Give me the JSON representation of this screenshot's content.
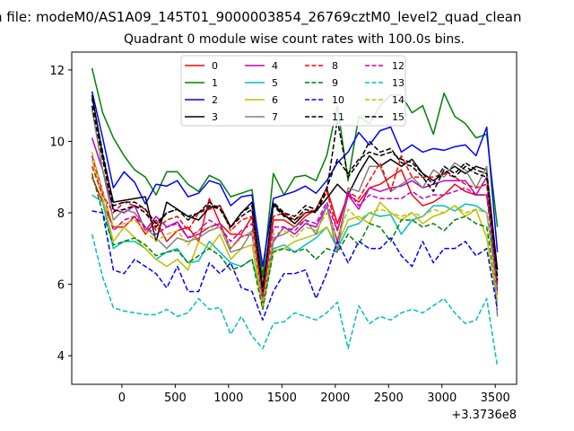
{
  "suptitle": "n file: modeM0/AS1A09_145T01_9000003854_26769cztM0_level2_quad_clean",
  "chart_data": {
    "type": "line",
    "title": "Quadrant 0 module wise count rates with 100.0s bins.",
    "xlabel": "",
    "ylabel": "",
    "x_offset_label": "+3.3736e8",
    "xlim": [
      -470,
      3700
    ],
    "ylim": [
      3.2,
      12.5
    ],
    "xticks": [
      0,
      500,
      1000,
      1500,
      2000,
      2500,
      3000,
      3500
    ],
    "yticks": [
      4,
      6,
      8,
      10,
      12
    ],
    "grid": false,
    "legend": {
      "placement": "top-center",
      "columns": 4
    },
    "x": [
      -280,
      -180,
      -80,
      20,
      120,
      220,
      320,
      420,
      520,
      620,
      720,
      820,
      920,
      1020,
      1120,
      1220,
      1320,
      1420,
      1520,
      1620,
      1720,
      1820,
      1920,
      2020,
      2120,
      2220,
      2320,
      2420,
      2520,
      2620,
      2720,
      2820,
      2920,
      3020,
      3120,
      3220,
      3320,
      3420,
      3520
    ],
    "series": [
      {
        "name": "0",
        "color": "#ff0000",
        "dash": false,
        "values": [
          9.0,
          8.3,
          7.6,
          7.6,
          7.9,
          7.4,
          7.8,
          7.2,
          7.5,
          7.6,
          7.2,
          8.4,
          7.7,
          7.4,
          7.4,
          7.9,
          5.6,
          7.8,
          7.8,
          7.6,
          7.9,
          8.1,
          8.7,
          7.7,
          8.5,
          8.3,
          8.7,
          8.8,
          9.0,
          9.2,
          8.5,
          8.2,
          8.3,
          8.5,
          8.8,
          8.6,
          8.5,
          8.5,
          6.4
        ]
      },
      {
        "name": "1",
        "color": "#008000",
        "dash": false,
        "values": [
          12.05,
          10.8,
          10.1,
          9.6,
          9.2,
          9.0,
          8.5,
          9.15,
          9.15,
          8.8,
          8.6,
          9.05,
          8.9,
          8.45,
          8.55,
          8.65,
          6.2,
          9.1,
          8.5,
          9.0,
          9.05,
          8.9,
          9.6,
          11.0,
          8.9,
          10.7,
          10.5,
          11.0,
          11.3,
          11.3,
          10.8,
          11.0,
          10.2,
          11.35,
          10.7,
          10.5,
          10.1,
          10.2,
          7.6
        ]
      },
      {
        "name": "2",
        "color": "#0000ff",
        "dash": false,
        "values": [
          11.4,
          10.1,
          8.7,
          9.15,
          8.85,
          8.25,
          8.8,
          8.75,
          8.9,
          8.45,
          8.55,
          8.9,
          8.8,
          8.2,
          8.45,
          8.5,
          6.5,
          8.4,
          8.5,
          8.6,
          8.75,
          8.55,
          8.9,
          9.4,
          9.7,
          10.25,
          9.9,
          10.3,
          10.4,
          9.7,
          9.9,
          9.7,
          9.8,
          9.75,
          9.85,
          9.9,
          9.6,
          10.4,
          6.9
        ]
      },
      {
        "name": "3",
        "color": "#000000",
        "dash": false,
        "values": [
          11.3,
          9.6,
          8.3,
          8.35,
          8.4,
          8.45,
          7.2,
          8.3,
          8.1,
          7.9,
          7.8,
          8.15,
          8.2,
          7.6,
          8.0,
          8.3,
          5.9,
          8.25,
          7.95,
          7.7,
          8.0,
          8.05,
          8.4,
          8.8,
          8.5,
          9.1,
          9.6,
          9.3,
          9.5,
          9.3,
          9.5,
          9.1,
          8.9,
          9.1,
          9.3,
          9.1,
          9.3,
          9.2,
          6.4
        ]
      },
      {
        "name": "4",
        "color": "#bf00bf",
        "dash": false,
        "values": [
          10.1,
          9.2,
          8.1,
          8.0,
          8.2,
          7.5,
          7.9,
          7.6,
          7.75,
          7.3,
          7.4,
          7.6,
          7.7,
          7.0,
          7.35,
          7.4,
          5.55,
          7.2,
          7.6,
          7.4,
          7.7,
          7.6,
          8.2,
          7.2,
          8.5,
          8.1,
          8.7,
          8.6,
          8.7,
          8.75,
          8.9,
          8.7,
          8.8,
          8.9,
          8.9,
          8.9,
          8.5,
          9.0,
          5.9
        ]
      },
      {
        "name": "5",
        "color": "#00bfbf",
        "dash": false,
        "values": [
          8.5,
          8.3,
          7.0,
          7.2,
          7.2,
          7.0,
          6.7,
          6.9,
          7.0,
          6.6,
          6.65,
          7.2,
          6.9,
          6.6,
          6.5,
          6.7,
          5.5,
          7.0,
          7.1,
          6.9,
          7.1,
          7.3,
          7.6,
          7.0,
          7.6,
          7.7,
          8.0,
          7.9,
          7.95,
          7.4,
          7.8,
          7.9,
          8.2,
          8.2,
          8.05,
          8.25,
          8.2,
          8.0,
          5.9
        ]
      },
      {
        "name": "6",
        "color": "#bfbf00",
        "dash": false,
        "values": [
          9.5,
          8.4,
          7.2,
          7.6,
          7.3,
          7.0,
          6.7,
          6.5,
          6.7,
          6.4,
          7.2,
          7.0,
          7.4,
          6.7,
          7.0,
          7.1,
          5.3,
          6.95,
          7.0,
          7.2,
          7.3,
          7.4,
          7.6,
          7.1,
          7.8,
          7.9,
          7.7,
          8.3,
          8.0,
          7.8,
          8.0,
          7.7,
          7.9,
          8.0,
          8.2,
          7.9,
          8.1,
          7.3,
          5.5
        ]
      },
      {
        "name": "7",
        "color": "#808080",
        "dash": false,
        "values": [
          10.9,
          9.2,
          7.8,
          8.1,
          8.0,
          7.6,
          7.3,
          7.0,
          7.3,
          7.2,
          7.3,
          7.5,
          7.6,
          6.9,
          7.0,
          7.5,
          5.4,
          7.3,
          7.4,
          7.6,
          7.8,
          7.4,
          8.2,
          6.9,
          8.7,
          8.6,
          9.3,
          9.3,
          8.6,
          8.8,
          9.0,
          8.7,
          9.2,
          9.0,
          9.4,
          9.2,
          8.7,
          9.3,
          5.1
        ]
      },
      {
        "name": "8",
        "color": "#ff0000",
        "dash": true,
        "values": [
          9.3,
          8.5,
          8.0,
          8.3,
          8.2,
          8.1,
          7.5,
          7.8,
          7.9,
          7.5,
          8.0,
          8.1,
          8.2,
          7.5,
          7.8,
          7.9,
          5.7,
          7.9,
          8.0,
          7.8,
          8.0,
          8.1,
          8.6,
          7.5,
          8.6,
          8.4,
          8.9,
          9.4,
          8.6,
          9.6,
          9.0,
          9.0,
          9.0,
          9.1,
          9.0,
          8.8,
          8.7,
          8.8,
          6.0
        ]
      },
      {
        "name": "9",
        "color": "#008000",
        "dash": true,
        "values": [
          9.1,
          8.0,
          7.1,
          7.2,
          7.3,
          7.1,
          6.8,
          6.9,
          6.95,
          6.6,
          6.8,
          7.0,
          6.8,
          6.4,
          6.5,
          6.7,
          5.3,
          6.9,
          7.0,
          6.9,
          7.0,
          6.7,
          7.0,
          6.9,
          7.4,
          7.1,
          7.7,
          7.6,
          7.2,
          7.8,
          7.8,
          7.6,
          7.7,
          7.5,
          7.8,
          7.9,
          7.7,
          7.6,
          5.7
        ]
      },
      {
        "name": "10",
        "color": "#0000ff",
        "dash": true,
        "values": [
          8.05,
          8.0,
          6.4,
          6.3,
          6.7,
          6.5,
          6.3,
          5.9,
          6.5,
          5.8,
          5.8,
          6.6,
          6.3,
          6.6,
          5.9,
          5.8,
          5.0,
          5.8,
          6.3,
          6.3,
          6.4,
          5.6,
          6.3,
          7.2,
          6.6,
          7.2,
          7.0,
          7.0,
          7.3,
          6.8,
          6.5,
          7.2,
          6.6,
          7.0,
          7.0,
          7.2,
          6.8,
          7.0,
          5.3
        ]
      },
      {
        "name": "11",
        "color": "#000000",
        "dash": true,
        "values": [
          11.0,
          9.5,
          8.05,
          8.1,
          8.2,
          8.0,
          7.6,
          8.0,
          8.1,
          7.9,
          8.0,
          8.2,
          8.1,
          7.6,
          7.9,
          8.1,
          5.8,
          8.2,
          7.9,
          7.8,
          8.1,
          8.0,
          8.6,
          10.6,
          9.0,
          9.4,
          10.0,
          9.7,
          9.8,
          9.4,
          9.3,
          9.0,
          8.6,
          9.2,
          9.0,
          9.3,
          9.1,
          9.0,
          6.1
        ]
      },
      {
        "name": "12",
        "color": "#bf00bf",
        "dash": true,
        "values": [
          9.6,
          8.6,
          7.5,
          7.8,
          7.9,
          7.6,
          7.4,
          7.6,
          7.7,
          7.3,
          7.5,
          7.8,
          7.6,
          7.2,
          7.5,
          7.7,
          5.5,
          7.6,
          7.6,
          7.5,
          7.8,
          7.7,
          8.3,
          7.5,
          8.6,
          8.2,
          8.5,
          8.4,
          8.4,
          8.4,
          8.6,
          8.4,
          8.5,
          8.5,
          8.6,
          8.7,
          8.5,
          8.5,
          5.8
        ]
      },
      {
        "name": "13",
        "color": "#00bfbf",
        "dash": true,
        "values": [
          7.4,
          6.2,
          5.35,
          5.25,
          5.2,
          5.15,
          5.15,
          5.3,
          5.1,
          5.2,
          5.6,
          5.3,
          5.35,
          4.6,
          5.1,
          4.55,
          4.2,
          4.9,
          4.95,
          5.2,
          5.1,
          5.0,
          5.2,
          5.5,
          4.2,
          5.4,
          4.9,
          5.1,
          5.0,
          5.2,
          5.3,
          5.2,
          5.4,
          5.6,
          5.2,
          4.9,
          5.0,
          5.6,
          3.7
        ]
      },
      {
        "name": "14",
        "color": "#bfbf00",
        "dash": true,
        "values": [
          9.7,
          8.6,
          7.6,
          7.7,
          7.8,
          7.5,
          7.2,
          7.4,
          7.5,
          7.1,
          7.5,
          7.6,
          7.6,
          7.0,
          7.3,
          7.5,
          5.4,
          7.4,
          7.5,
          7.3,
          7.6,
          7.5,
          8.0,
          7.3,
          8.1,
          7.8,
          8.0,
          8.1,
          8.0,
          7.9,
          8.0,
          7.9,
          8.1,
          8.0,
          8.2,
          8.0,
          8.1,
          8.0,
          5.6
        ]
      },
      {
        "name": "15",
        "color": "#000000",
        "dash": true,
        "values": [
          11.2,
          9.7,
          8.2,
          8.3,
          8.3,
          8.1,
          7.7,
          8.0,
          8.1,
          7.8,
          8.0,
          8.3,
          8.1,
          7.6,
          8.0,
          8.2,
          5.9,
          8.3,
          8.0,
          7.9,
          8.2,
          8.1,
          8.7,
          9.5,
          9.1,
          9.5,
          9.7,
          9.6,
          9.7,
          9.5,
          9.4,
          9.1,
          8.8,
          9.3,
          9.1,
          9.4,
          9.2,
          9.1,
          6.2
        ]
      }
    ]
  }
}
